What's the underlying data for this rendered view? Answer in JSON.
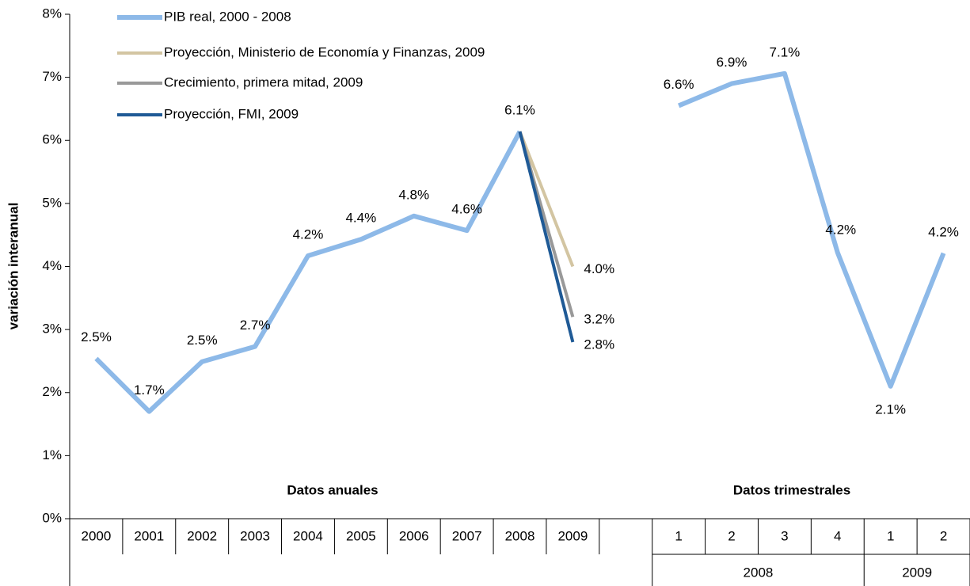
{
  "chart_data": {
    "type": "line",
    "y_label": "variación interanual",
    "annotations": [
      "Datos anuales",
      "Datos trimestrales"
    ],
    "categories": [
      "2000",
      "2001",
      "2002",
      "2003",
      "2004",
      "2005",
      "2006",
      "2007",
      "2008",
      "2009",
      null,
      "1",
      "2",
      "3",
      "4",
      "1",
      "2"
    ],
    "category_groups": [
      null,
      null,
      null,
      null,
      null,
      null,
      null,
      null,
      null,
      null,
      null,
      "2008",
      "2008",
      "2008",
      "2008",
      "2009",
      "2009"
    ],
    "ylim": [
      0,
      8
    ],
    "yticks": [
      {
        "value": 0,
        "label": "0%"
      },
      {
        "value": 1,
        "label": "1%"
      },
      {
        "value": 2,
        "label": "2%"
      },
      {
        "value": 3,
        "label": "3%"
      },
      {
        "value": 4,
        "label": "4%"
      },
      {
        "value": 5,
        "label": "5%"
      },
      {
        "value": 6,
        "label": "6%"
      },
      {
        "value": 7,
        "label": "7%"
      },
      {
        "value": 8,
        "label": "8%"
      }
    ],
    "legend": "top-left",
    "series": [
      {
        "name": "PIB real, 2000 - 2008",
        "color": "#8db9e8",
        "values": [
          2.54,
          1.7,
          2.49,
          2.73,
          4.17,
          4.43,
          4.8,
          4.57,
          6.14,
          null,
          null,
          6.55,
          6.9,
          7.06,
          4.22,
          2.1,
          4.21
        ],
        "value_labels": [
          "2.5%",
          "1.7%",
          "2.5%",
          "2.7%",
          "4.2%",
          "4.4%",
          "4.8%",
          "4.6%",
          "6.1%",
          null,
          null,
          "6.6%",
          "6.9%",
          "7.1%",
          "4.2%",
          "2.1%",
          "4.2%"
        ]
      },
      {
        "name": "Proyección, Ministerio de Economía y Finanzas, 2009",
        "color": "#d3c5a2",
        "values": [
          null,
          null,
          null,
          null,
          null,
          null,
          null,
          null,
          6.14,
          4.0,
          null,
          null,
          null,
          null,
          null,
          null,
          null
        ],
        "value_labels": [
          null,
          null,
          null,
          null,
          null,
          null,
          null,
          null,
          null,
          "4.0%",
          null,
          null,
          null,
          null,
          null,
          null,
          null
        ]
      },
      {
        "name": "Crecimiento, primera mitad, 2009",
        "color": "#999999",
        "values": [
          null,
          null,
          null,
          null,
          null,
          null,
          null,
          null,
          6.14,
          3.2,
          null,
          null,
          null,
          null,
          null,
          null,
          null
        ],
        "value_labels": [
          null,
          null,
          null,
          null,
          null,
          null,
          null,
          null,
          null,
          "3.2%",
          null,
          null,
          null,
          null,
          null,
          null,
          null
        ]
      },
      {
        "name": "Proyección, FMI, 2009",
        "color": "#1f5a96",
        "values": [
          null,
          null,
          null,
          null,
          null,
          null,
          null,
          null,
          6.14,
          2.8,
          null,
          null,
          null,
          null,
          null,
          null,
          null
        ],
        "value_labels": [
          null,
          null,
          null,
          null,
          null,
          null,
          null,
          null,
          null,
          "2.8%",
          null,
          null,
          null,
          null,
          null,
          null,
          null
        ]
      }
    ]
  }
}
